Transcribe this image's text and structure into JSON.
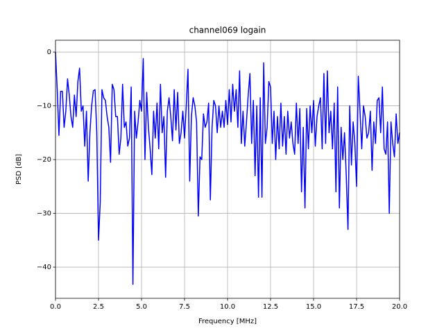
{
  "chart_data": {
    "type": "line",
    "title": "channel069 logain",
    "xlabel": "Frequency [MHz]",
    "ylabel": "PSD [dB]",
    "grid": true,
    "xlim": [
      0,
      20
    ],
    "ylim": [
      -45.8,
      2.2
    ],
    "xticks": [
      {
        "value": 0,
        "label": "0.0"
      },
      2.5,
      {
        "value": 5,
        "label": "5.0"
      },
      7.5,
      {
        "value": 10,
        "label": "10.0"
      },
      12.5,
      {
        "value": 15,
        "label": "15.0"
      },
      17.5,
      {
        "value": 20,
        "label": "20.0"
      }
    ],
    "yticks": [
      {
        "value": -40,
        "label": "−40"
      },
      {
        "value": -30,
        "label": "−30"
      },
      {
        "value": -20,
        "label": "−20"
      },
      {
        "value": -10,
        "label": "−10"
      },
      0
    ],
    "x": [
      0,
      0.1,
      0.2,
      0.3,
      0.4,
      0.5,
      0.6,
      0.7,
      0.8,
      0.9,
      1,
      1.1,
      1.2,
      1.3,
      1.4,
      1.5,
      1.6,
      1.7,
      1.8,
      1.9,
      2,
      2.1,
      2.2,
      2.3,
      2.4,
      2.5,
      2.6,
      2.7,
      2.8,
      2.9,
      3,
      3.1,
      3.2,
      3.3,
      3.4,
      3.5,
      3.6,
      3.7,
      3.8,
      3.9,
      4,
      4.1,
      4.2,
      4.3,
      4.4,
      4.5,
      4.6,
      4.7,
      4.8,
      4.9,
      5,
      5.1,
      5.2,
      5.3,
      5.4,
      5.5,
      5.6,
      5.7,
      5.8,
      5.9,
      6,
      6.1,
      6.2,
      6.3,
      6.4,
      6.5,
      6.6,
      6.7,
      6.8,
      6.9,
      7,
      7.1,
      7.2,
      7.3,
      7.4,
      7.5,
      7.6,
      7.7,
      7.8,
      7.9,
      8,
      8.1,
      8.2,
      8.3,
      8.4,
      8.5,
      8.6,
      8.7,
      8.8,
      8.9,
      9,
      9.1,
      9.2,
      9.3,
      9.4,
      9.5,
      9.6,
      9.7,
      9.8,
      9.9,
      10,
      10.1,
      10.2,
      10.3,
      10.4,
      10.5,
      10.6,
      10.7,
      10.8,
      10.9,
      11,
      11.1,
      11.2,
      11.3,
      11.4,
      11.5,
      11.6,
      11.7,
      11.8,
      11.9,
      12,
      12.1,
      12.2,
      12.3,
      12.4,
      12.5,
      12.6,
      12.7,
      12.8,
      12.9,
      13,
      13.1,
      13.2,
      13.3,
      13.4,
      13.5,
      13.6,
      13.7,
      13.8,
      13.9,
      14,
      14.1,
      14.2,
      14.3,
      14.4,
      14.5,
      14.6,
      14.7,
      14.8,
      14.9,
      15,
      15.1,
      15.2,
      15.3,
      15.4,
      15.5,
      15.6,
      15.7,
      15.8,
      15.9,
      16,
      16.1,
      16.2,
      16.3,
      16.4,
      16.5,
      16.6,
      16.7,
      16.8,
      16.9,
      17,
      17.1,
      17.2,
      17.3,
      17.4,
      17.5,
      17.6,
      17.7,
      17.8,
      17.9,
      18,
      18.1,
      18.2,
      18.3,
      18.4,
      18.5,
      18.6,
      18.7,
      18.8,
      18.9,
      19,
      19.1,
      19.2,
      19.3,
      19.4,
      19.5,
      19.6,
      19.7,
      19.8,
      19.9,
      20
    ],
    "series": [
      {
        "name": "channel069",
        "color": "#0000ff",
        "values": [
          0,
          -7,
          -15.5,
          -7.3,
          -7.3,
          -14,
          -11,
          -5,
          -8,
          -12,
          -14,
          -8,
          -12,
          -5.5,
          -3,
          -11,
          -10,
          -17.5,
          -11,
          -24,
          -15,
          -10,
          -7.2,
          -7,
          -15,
          -35,
          -28,
          -7,
          -8.5,
          -9,
          -12,
          -14,
          -20.5,
          -6,
          -7,
          -12,
          -12,
          -19,
          -16,
          -6,
          -14,
          -13,
          -17.5,
          -16,
          -6.5,
          -43.2,
          -11,
          -16,
          -13,
          -9,
          -11,
          -1.2,
          -20,
          -7.5,
          -14,
          -18,
          -22.8,
          -11,
          -16,
          -9.5,
          -18,
          -6,
          -15,
          -12,
          -23.3,
          -11,
          -8.5,
          -12,
          -16.5,
          -7,
          -14.5,
          -7.5,
          -17,
          -15,
          -11,
          -16,
          -10,
          -3.2,
          -24,
          -12,
          -8.5,
          -10,
          -13,
          -30.5,
          -19.5,
          -20,
          -11.5,
          -14,
          -13,
          -9.5,
          -27.5,
          -14,
          -9,
          -10,
          -15,
          -10,
          -14,
          -11,
          -14,
          -9,
          -13.5,
          -7,
          -13,
          -6,
          -11,
          -7,
          -14,
          -3.5,
          -17,
          -11,
          -17.5,
          -13,
          -8,
          -4,
          -17,
          -9,
          -23,
          -10,
          -27,
          -8.5,
          -27,
          -2,
          -17,
          -14,
          -5.5,
          -6.5,
          -17,
          -11,
          -20,
          -12,
          -18,
          -9.5,
          -17.5,
          -12,
          -19,
          -11,
          -16,
          -13,
          -17,
          -19,
          -9.5,
          -17,
          -10.5,
          -26,
          -14,
          -29,
          -10.5,
          -18,
          -10,
          -15,
          -9,
          -17.5,
          -12,
          -10,
          -8.5,
          -18,
          -4,
          -17,
          -3.5,
          -15,
          -11,
          -18,
          -9.5,
          -26,
          -6.5,
          -29,
          -14,
          -20,
          -15,
          -23,
          -33,
          -10,
          -21,
          -13,
          -17,
          -25,
          -4.5,
          -11,
          -18,
          -10,
          -12,
          -16,
          -15,
          -11,
          -22,
          -13,
          -17,
          -9,
          -8.5,
          -15,
          -6.5,
          -18,
          -19,
          -13,
          -30,
          -13,
          -17,
          -19.5,
          -11.5,
          -17,
          -15
        ]
      }
    ]
  }
}
